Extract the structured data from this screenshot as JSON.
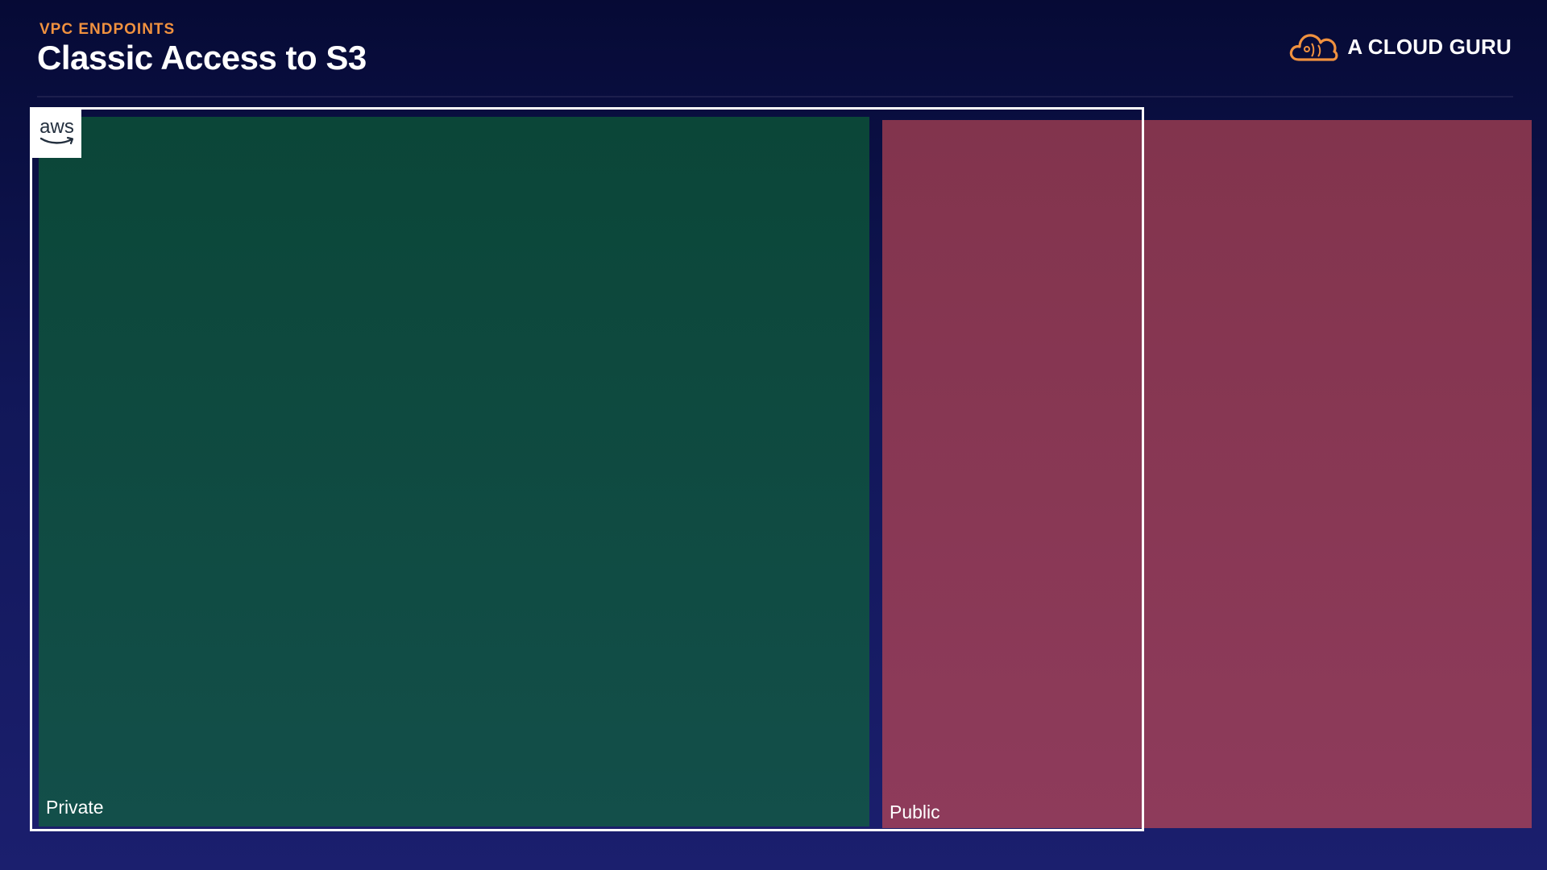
{
  "header": {
    "eyebrow": "VPC ENDPOINTS",
    "title": "Classic Access to S3"
  },
  "brand": {
    "icon": "cloud-icon",
    "name": "A CLOUD GURU",
    "accent_color": "#f0913f"
  },
  "diagram": {
    "aws_cloud": {
      "logo_text": "aws",
      "logo_icon": "aws-logo-icon",
      "border_color": "#ffffff"
    },
    "subnets": [
      {
        "id": "private",
        "label": "Private",
        "color": "#0f4a41"
      },
      {
        "id": "public",
        "label": "Public",
        "color": "#883853"
      }
    ]
  }
}
